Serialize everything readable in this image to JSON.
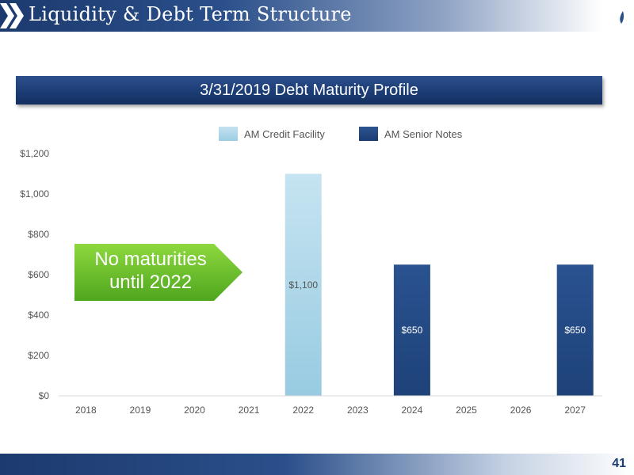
{
  "slide": {
    "title": "Liquidity & Debt Term Structure",
    "page_number": "41",
    "banner_title": "3/31/2019 Debt Maturity Profile",
    "callout_text": "No maturities\nuntil 2022"
  },
  "colors": {
    "credit_facility": "#a9d4e8",
    "senior_notes": "#234a82",
    "callout_green": "#6cc12e",
    "header_blue": "#1c3a6e"
  },
  "chart_data": {
    "type": "bar",
    "title": "3/31/2019 Debt Maturity Profile",
    "categories": [
      "2018",
      "2019",
      "2020",
      "2021",
      "2022",
      "2023",
      "2024",
      "2025",
      "2026",
      "2027"
    ],
    "series": [
      {
        "name": "AM Credit Facility",
        "color": "#a9d4e8",
        "values": [
          0,
          0,
          0,
          0,
          1100,
          0,
          0,
          0,
          0,
          0
        ],
        "labels": [
          "",
          "",
          "",
          "",
          "$1,100",
          "",
          "",
          "",
          "",
          ""
        ]
      },
      {
        "name": "AM Senior Notes",
        "color": "#234a82",
        "values": [
          0,
          0,
          0,
          0,
          0,
          0,
          650,
          0,
          0,
          650
        ],
        "labels": [
          "",
          "",
          "",
          "",
          "",
          "",
          "$650",
          "",
          "",
          "$650"
        ]
      }
    ],
    "ylim": [
      0,
      1200
    ],
    "yticks": [
      0,
      200,
      400,
      600,
      800,
      1000,
      1200
    ],
    "ytick_labels": [
      "$0",
      "$200",
      "$400",
      "$600",
      "$800",
      "$1,000",
      "$1,200"
    ],
    "grid": false,
    "legend": "top-center"
  }
}
